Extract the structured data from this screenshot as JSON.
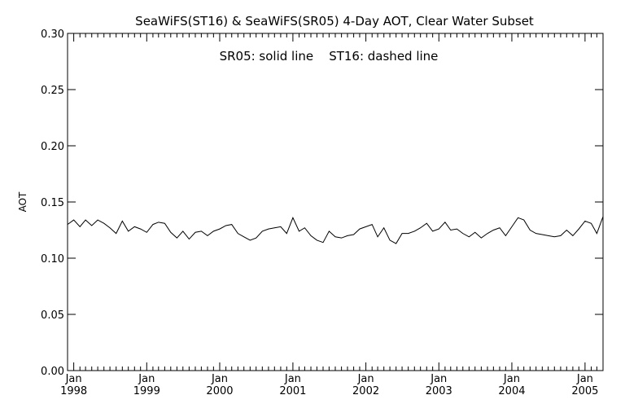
{
  "chart_data": {
    "type": "line",
    "title": "SeaWiFS(ST16) & SeaWiFS(SR05) 4-Day AOT, Clear Water Subset",
    "annotation": "SR05: solid line    ST16: dashed line",
    "xlabel": "",
    "ylabel": "AOT",
    "ylim": [
      0.0,
      0.3
    ],
    "xlim": [
      "1997-12-01",
      "2005-04-01"
    ],
    "yticks": [
      0.0,
      0.05,
      0.1,
      0.15,
      0.2,
      0.25,
      0.3
    ],
    "ytick_labels": [
      "0.00",
      "0.05",
      "0.10",
      "0.15",
      "0.20",
      "0.25",
      "0.30"
    ],
    "xticks": [
      {
        "date": "1998-01-01",
        "month": "Jan",
        "year": "1998"
      },
      {
        "date": "1999-01-01",
        "month": "Jan",
        "year": "1999"
      },
      {
        "date": "2000-01-01",
        "month": "Jan",
        "year": "2000"
      },
      {
        "date": "2001-01-01",
        "month": "Jan",
        "year": "2001"
      },
      {
        "date": "2002-01-01",
        "month": "Jan",
        "year": "2002"
      },
      {
        "date": "2003-01-01",
        "month": "Jan",
        "year": "2003"
      },
      {
        "date": "2004-01-01",
        "month": "Jan",
        "year": "2004"
      },
      {
        "date": "2005-01-01",
        "month": "Jan",
        "year": "2005"
      }
    ],
    "grid": false,
    "series": [
      {
        "name": "SR05",
        "style": "solid",
        "color": "#000000",
        "x": [
          "1997-12-01",
          "1998-01-01",
          "1998-02-01",
          "1998-03-01",
          "1998-04-01",
          "1998-05-01",
          "1998-06-01",
          "1998-07-01",
          "1998-08-01",
          "1998-09-01",
          "1998-10-01",
          "1998-11-01",
          "1998-12-01",
          "1999-01-01",
          "1999-02-01",
          "1999-03-01",
          "1999-04-01",
          "1999-05-01",
          "1999-06-01",
          "1999-07-01",
          "1999-08-01",
          "1999-09-01",
          "1999-10-01",
          "1999-11-01",
          "1999-12-01",
          "2000-01-01",
          "2000-02-01",
          "2000-03-01",
          "2000-04-01",
          "2000-05-01",
          "2000-06-01",
          "2000-07-01",
          "2000-08-01",
          "2000-09-01",
          "2000-10-01",
          "2000-11-01",
          "2000-12-01",
          "2001-01-01",
          "2001-02-01",
          "2001-03-01",
          "2001-04-01",
          "2001-05-01",
          "2001-06-01",
          "2001-07-01",
          "2001-08-01",
          "2001-09-01",
          "2001-10-01",
          "2001-11-01",
          "2001-12-01",
          "2002-01-01",
          "2002-02-01",
          "2002-03-01",
          "2002-04-01",
          "2002-05-01",
          "2002-06-01",
          "2002-07-01",
          "2002-08-01",
          "2002-09-01",
          "2002-10-01",
          "2002-11-01",
          "2002-12-01",
          "2003-01-01",
          "2003-02-01",
          "2003-03-01",
          "2003-04-01",
          "2003-05-01",
          "2003-06-01",
          "2003-07-01",
          "2003-08-01",
          "2003-09-01",
          "2003-10-01",
          "2003-11-01",
          "2003-12-01",
          "2004-01-01",
          "2004-02-01",
          "2004-03-01",
          "2004-04-01",
          "2004-05-01",
          "2004-06-01",
          "2004-07-01",
          "2004-08-01",
          "2004-09-01",
          "2004-10-01",
          "2004-11-01",
          "2004-12-01",
          "2005-01-01",
          "2005-02-01",
          "2005-03-01",
          "2005-04-01"
        ],
        "y": [
          0.13,
          0.134,
          0.128,
          0.134,
          0.129,
          0.134,
          0.131,
          0.127,
          0.122,
          0.133,
          0.124,
          0.128,
          0.126,
          0.123,
          0.13,
          0.132,
          0.131,
          0.123,
          0.118,
          0.124,
          0.117,
          0.123,
          0.124,
          0.12,
          0.124,
          0.126,
          0.129,
          0.13,
          0.122,
          0.119,
          0.116,
          0.118,
          0.124,
          0.126,
          0.127,
          0.128,
          0.122,
          0.136,
          0.124,
          0.127,
          0.12,
          0.116,
          0.114,
          0.124,
          0.119,
          0.118,
          0.12,
          0.121,
          0.126,
          0.128,
          0.13,
          0.119,
          0.127,
          0.116,
          0.113,
          0.122,
          0.122,
          0.124,
          0.127,
          0.131,
          0.124,
          0.126,
          0.132,
          0.125,
          0.126,
          0.122,
          0.119,
          0.123,
          0.118,
          0.122,
          0.125,
          0.127,
          0.12,
          0.128,
          0.136,
          0.134,
          0.125,
          0.122,
          0.121,
          0.12,
          0.119,
          0.12,
          0.125,
          0.12,
          0.126,
          0.133,
          0.131,
          0.122,
          0.137
        ]
      }
    ]
  }
}
